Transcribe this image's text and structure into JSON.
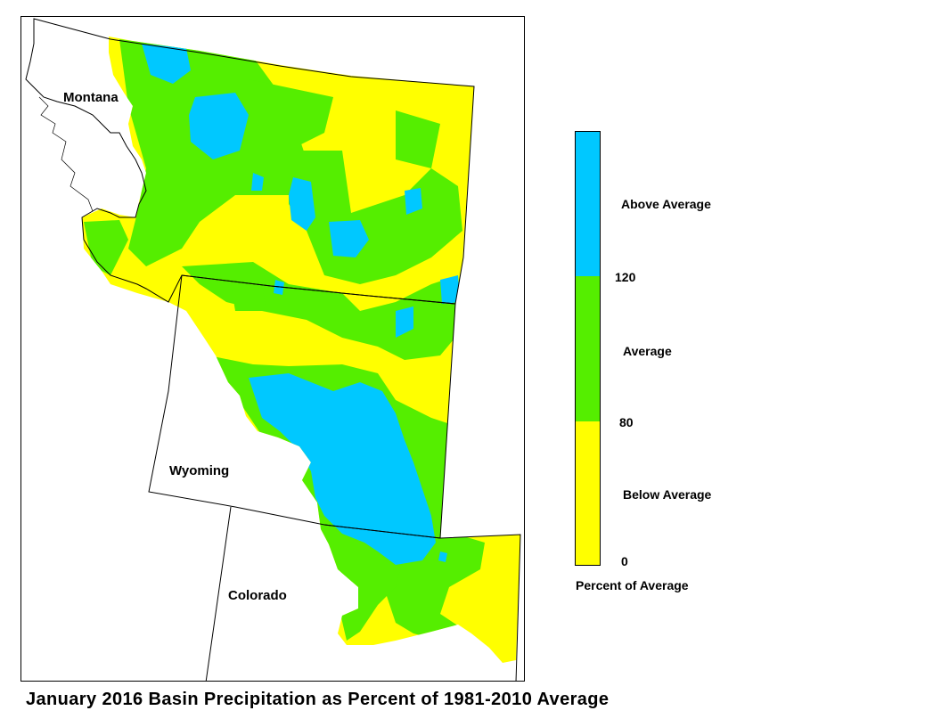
{
  "map": {
    "states": [
      {
        "name": "Montana"
      },
      {
        "name": "Wyoming"
      },
      {
        "name": "Colorado"
      }
    ]
  },
  "legend": {
    "classes": [
      {
        "label": "Above Average",
        "color": "#00c8ff",
        "range": "120+"
      },
      {
        "label": "Average",
        "color": "#55ee00",
        "range": "80-120"
      },
      {
        "label": "Below Average",
        "color": "#ffff00",
        "range": "0-80"
      }
    ],
    "breaks": [
      "120",
      "80",
      "0"
    ],
    "caption": "Percent of Average"
  },
  "title": "January 2016 Basin Precipitation as Percent of 1981-2010 Average"
}
